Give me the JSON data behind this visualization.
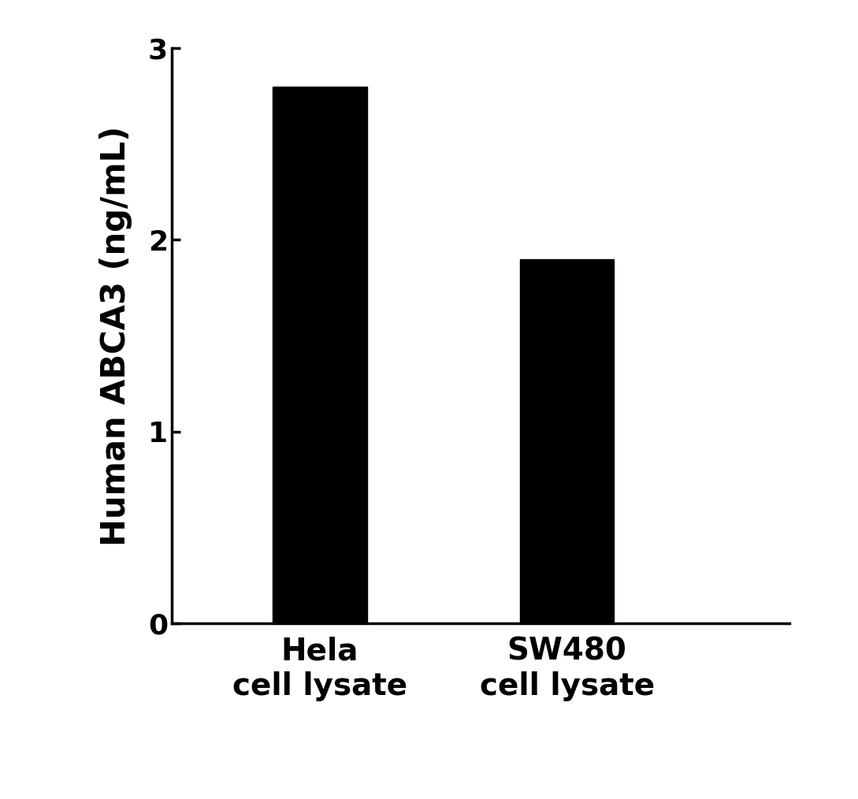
{
  "categories": [
    "Hela\ncell lysate",
    "SW480\ncell lysate"
  ],
  "values": [
    2.8,
    1.9
  ],
  "bar_color": "#000000",
  "bar_width": 0.38,
  "bar_positions": [
    1,
    2
  ],
  "ylabel": "Human ABCA3 (ng/mL)",
  "ylim": [
    0,
    3
  ],
  "yticks": [
    0,
    1,
    2,
    3
  ],
  "background_color": "#ffffff",
  "ylabel_fontsize": 30,
  "tick_fontsize": 26,
  "xlabel_fontsize": 28,
  "spine_linewidth": 2.5,
  "xlim": [
    0.4,
    2.9
  ]
}
